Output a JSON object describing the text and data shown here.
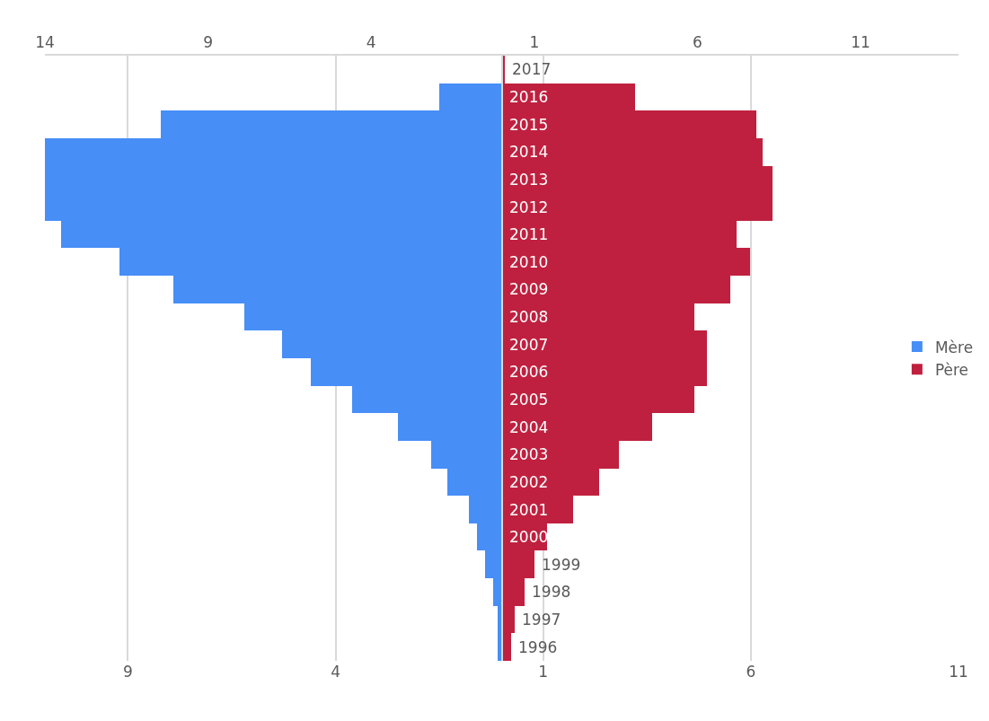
{
  "chart_data": {
    "type": "bar",
    "orientation": "horizontal",
    "categories": [
      "2017",
      "2016",
      "2015",
      "2014",
      "2013",
      "2012",
      "2011",
      "2010",
      "2009",
      "2008",
      "2007",
      "2006",
      "2005",
      "2004",
      "2003",
      "2002",
      "2001",
      "2000",
      "1999",
      "1998",
      "1997",
      "1996"
    ],
    "series": [
      {
        "name": "Mère",
        "color": "#478ef7",
        "values": [
          0,
          -1.5,
          -8.2,
          -11,
          -11,
          -11,
          -10.6,
          -9.2,
          -7.9,
          -6.2,
          -5.3,
          -4.6,
          -3.6,
          -2.5,
          -1.7,
          -1.3,
          -0.8,
          -0.6,
          -0.4,
          -0.2,
          -0.1,
          -0.1
        ]
      },
      {
        "name": "Père",
        "color": "#c0203f",
        "axis": "x2",
        "values": [
          0.1,
          4.1,
          7.8,
          8.0,
          8.3,
          8.3,
          7.2,
          7.6,
          7.0,
          5.9,
          6.3,
          6.3,
          5.9,
          4.6,
          3.6,
          3.0,
          2.2,
          1.4,
          1.0,
          0.7,
          0.4,
          0.3
        ]
      }
    ],
    "xlim": [
      -11,
      11
    ],
    "xticks": [
      {
        "value": -9,
        "label": "9"
      },
      {
        "value": -4,
        "label": "4"
      },
      1,
      6,
      11
    ],
    "x2lim": [
      -14,
      14
    ],
    "x2ticks": [
      {
        "value": -14,
        "label": "14"
      },
      {
        "value": -9,
        "label": "9"
      },
      {
        "value": -4,
        "label": "4"
      },
      1,
      6,
      11
    ],
    "grid": "x",
    "legend": "right",
    "stacked": true
  }
}
